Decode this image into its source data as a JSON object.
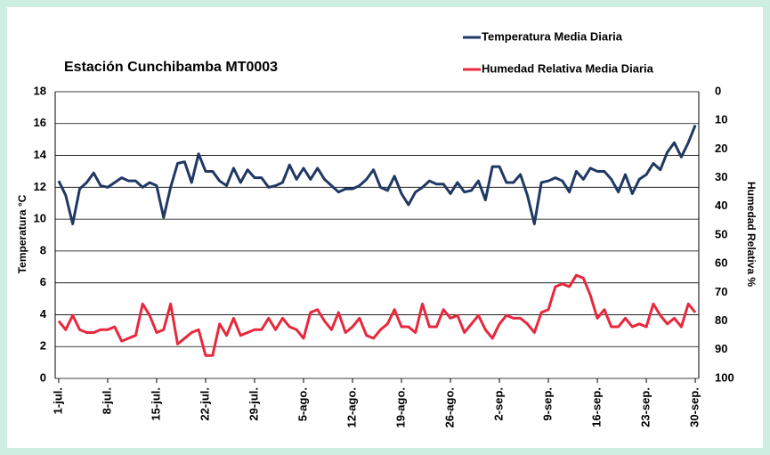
{
  "chart_data": {
    "type": "line",
    "title": "Estación Cunchibamba  MT0003",
    "y_label": "Temperatura °C",
    "y2_label": "Humedad Relativa %",
    "categories": [
      "1-jul.",
      null,
      null,
      null,
      null,
      null,
      null,
      "8-jul.",
      null,
      null,
      null,
      null,
      null,
      null,
      "15-jul.",
      null,
      null,
      null,
      null,
      null,
      null,
      "22-jul.",
      null,
      null,
      null,
      null,
      null,
      null,
      "29-jul.",
      null,
      null,
      null,
      null,
      null,
      null,
      "5-ago.",
      null,
      null,
      null,
      null,
      null,
      null,
      "12-ago.",
      null,
      null,
      null,
      null,
      null,
      null,
      "19-ago.",
      null,
      null,
      null,
      null,
      null,
      null,
      "26-ago.",
      null,
      null,
      null,
      null,
      null,
      null,
      "2-sep.",
      null,
      null,
      null,
      null,
      null,
      null,
      "9-sep.",
      null,
      null,
      null,
      null,
      null,
      null,
      "16-sep.",
      null,
      null,
      null,
      null,
      null,
      null,
      "23-sep.",
      null,
      null,
      null,
      null,
      null,
      null,
      "30-sep."
    ],
    "series": [
      {
        "name": "Temperatura Media Diaria",
        "color": "#1f3864",
        "values": [
          12.4,
          11.5,
          9.7,
          11.9,
          12.3,
          12.9,
          12.1,
          12.0,
          12.3,
          12.6,
          12.4,
          12.4,
          12.0,
          12.3,
          12.1,
          10.1,
          12.0,
          13.5,
          13.6,
          12.3,
          14.1,
          13.0,
          13.0,
          12.4,
          12.1,
          13.2,
          12.3,
          13.1,
          12.6,
          12.6,
          12.0,
          12.1,
          12.3,
          13.4,
          12.5,
          13.2,
          12.5,
          13.2,
          12.5,
          12.1,
          11.7,
          11.9,
          11.9,
          12.1,
          12.5,
          13.1,
          12.0,
          11.8,
          12.7,
          11.6,
          10.9,
          11.7,
          12.0,
          12.4,
          12.2,
          12.2,
          11.6,
          12.3,
          11.7,
          11.8,
          12.4,
          11.2,
          13.3,
          13.3,
          12.3,
          12.3,
          12.8,
          11.5,
          9.7,
          12.3,
          12.4,
          12.6,
          12.4,
          11.7,
          13.0,
          12.5,
          13.2,
          13.0,
          13.0,
          12.5,
          11.7,
          12.8,
          11.6,
          12.5,
          12.8,
          13.5,
          13.1,
          14.2,
          14.8,
          13.9,
          14.8,
          15.9
        ]
      },
      {
        "name": "Humedad Relativa Media Diaria",
        "color": "#e8283c",
        "axis": "y2",
        "values": [
          80,
          83,
          78,
          83,
          84,
          84,
          83,
          83,
          82,
          87,
          86,
          85,
          74,
          78,
          84,
          83,
          74,
          88,
          86,
          84,
          83,
          92,
          92,
          81,
          85,
          79,
          85,
          84,
          83,
          83,
          79,
          83,
          79,
          82,
          83,
          86,
          77,
          76,
          80,
          83,
          77,
          84,
          82,
          79,
          85,
          86,
          83,
          81,
          76,
          82,
          82,
          84,
          74,
          82,
          82,
          76,
          79,
          78,
          84,
          81,
          78,
          83,
          86,
          81,
          78,
          79,
          79,
          81,
          84,
          77,
          76,
          68,
          67,
          68,
          64,
          65,
          71,
          79,
          76,
          82,
          82,
          79,
          82,
          81,
          82,
          74,
          78,
          81,
          79,
          82,
          74,
          77
        ]
      }
    ],
    "ylim": [
      0,
      18
    ],
    "yticks": [
      0,
      2,
      4,
      6,
      8,
      10,
      12,
      14,
      16,
      18
    ],
    "y2lim": [
      100,
      0
    ],
    "y2ticks": [
      0,
      10,
      20,
      30,
      40,
      50,
      60,
      70,
      80,
      90,
      100
    ],
    "grid": true,
    "legend": "top-right"
  }
}
